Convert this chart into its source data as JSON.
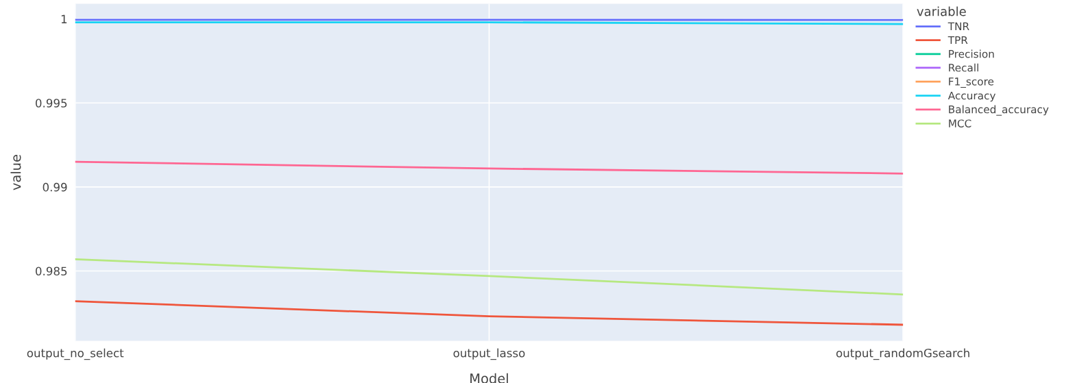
{
  "chart_data": {
    "type": "line",
    "xlabel": "Model",
    "ylabel": "value",
    "legend_title": "variable",
    "legend": "right",
    "categories": [
      "output_no_select",
      "output_lasso",
      "output_randomGsearch"
    ],
    "ylim": [
      0.98084,
      1.0009
    ],
    "yticks": [
      {
        "value": 0.985,
        "label": "0.985"
      },
      {
        "value": 0.99,
        "label": "0.99"
      },
      {
        "value": 0.995,
        "label": "0.995"
      },
      {
        "value": 1,
        "label": "1"
      }
    ],
    "grid": true,
    "marker": "none",
    "line_style": "solid",
    "series": [
      {
        "name": "TNR",
        "color": "#636efa",
        "values": [
          0.99995,
          0.99995,
          0.99994
        ]
      },
      {
        "name": "TPR",
        "color": "#ef553b",
        "values": [
          0.9832,
          0.9823,
          0.9818
        ]
      },
      {
        "name": "Precision",
        "color": "#00cc96",
        "values": [
          null,
          null,
          null
        ]
      },
      {
        "name": "Recall",
        "color": "#ab63fa",
        "values": [
          null,
          null,
          null
        ]
      },
      {
        "name": "F1_score",
        "color": "#ffa15a",
        "values": [
          null,
          null,
          null
        ]
      },
      {
        "name": "Accuracy",
        "color": "#19d3f3",
        "values": [
          0.9998,
          0.9998,
          0.9997
        ]
      },
      {
        "name": "Balanced_accuracy",
        "color": "#ff6692",
        "values": [
          0.9915,
          0.9911,
          0.9908
        ]
      },
      {
        "name": "MCC",
        "color": "#b6e880",
        "values": [
          0.9857,
          0.9847,
          0.9836
        ]
      }
    ]
  }
}
